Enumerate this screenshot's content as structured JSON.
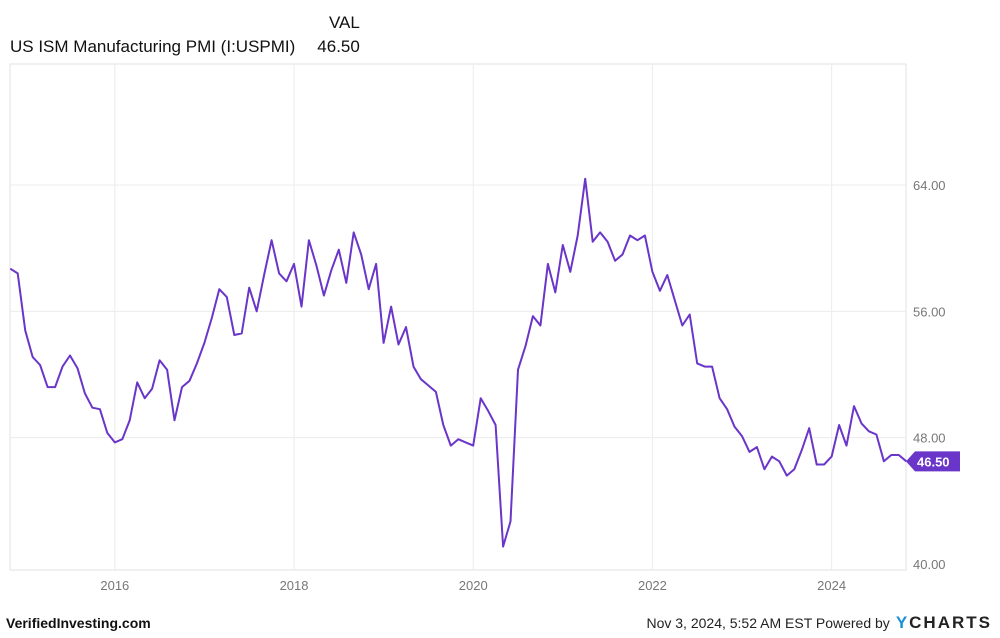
{
  "header": {
    "column_label": "VAL",
    "series_name": "US ISM Manufacturing PMI (I:USPMI)",
    "current_value": "46.50"
  },
  "footer": {
    "source": "VerifiedInvesting.com",
    "timestamp": "Nov 3, 2024, 5:52 AM EST Powered by",
    "logo_y": "Y",
    "logo_rest": "CHARTS"
  },
  "colors": {
    "line": "#6a35c9",
    "grid": "#ececec",
    "axis_text": "#777777"
  },
  "chart_data": {
    "type": "line",
    "title": "US ISM Manufacturing PMI (I:USPMI)",
    "xlabel": "",
    "ylabel": "",
    "frequency": "monthly",
    "start": "2014-10",
    "end": "2024-10",
    "xlim": [
      2014.83,
      2024.83
    ],
    "ylim": [
      39.62,
      71.66
    ],
    "x_ticks": [
      "2016",
      "2018",
      "2020",
      "2022",
      "2024"
    ],
    "y_ticks": [
      "40.00",
      "48.00",
      "56.00",
      "64.00"
    ],
    "grid": true,
    "last_value_label": "46.50",
    "series": [
      {
        "name": "US ISM Manufacturing PMI",
        "values": [
          58.7,
          58.4,
          54.8,
          53.1,
          52.6,
          51.2,
          51.2,
          52.5,
          53.2,
          52.4,
          50.8,
          49.9,
          49.8,
          48.3,
          47.7,
          47.9,
          49.1,
          51.5,
          50.5,
          51.1,
          52.9,
          52.3,
          49.1,
          51.2,
          51.6,
          52.7,
          54.0,
          55.6,
          57.4,
          56.9,
          54.5,
          54.6,
          57.5,
          56.0,
          58.3,
          60.5,
          58.4,
          57.9,
          59.0,
          56.3,
          60.5,
          58.9,
          57.0,
          58.6,
          59.9,
          57.8,
          61.0,
          59.6,
          57.4,
          59.0,
          54.0,
          56.3,
          53.9,
          55.0,
          52.5,
          51.7,
          51.3,
          50.9,
          48.8,
          47.5,
          47.9,
          47.7,
          47.5,
          50.5,
          49.7,
          48.8,
          41.1,
          42.7,
          52.3,
          53.8,
          55.7,
          55.1,
          59.0,
          57.2,
          60.2,
          58.5,
          60.8,
          64.4,
          60.4,
          61.0,
          60.4,
          59.2,
          59.6,
          60.8,
          60.5,
          60.8,
          58.5,
          57.3,
          58.3,
          56.7,
          55.1,
          55.8,
          52.7,
          52.5,
          52.5,
          50.5,
          49.8,
          48.7,
          48.1,
          47.1,
          47.4,
          46.0,
          46.8,
          46.5,
          45.6,
          46.0,
          47.2,
          48.6,
          46.3,
          46.3,
          46.8,
          48.8,
          47.5,
          50.0,
          48.9,
          48.4,
          48.2,
          46.5,
          46.9,
          46.9,
          46.5
        ]
      }
    ]
  }
}
